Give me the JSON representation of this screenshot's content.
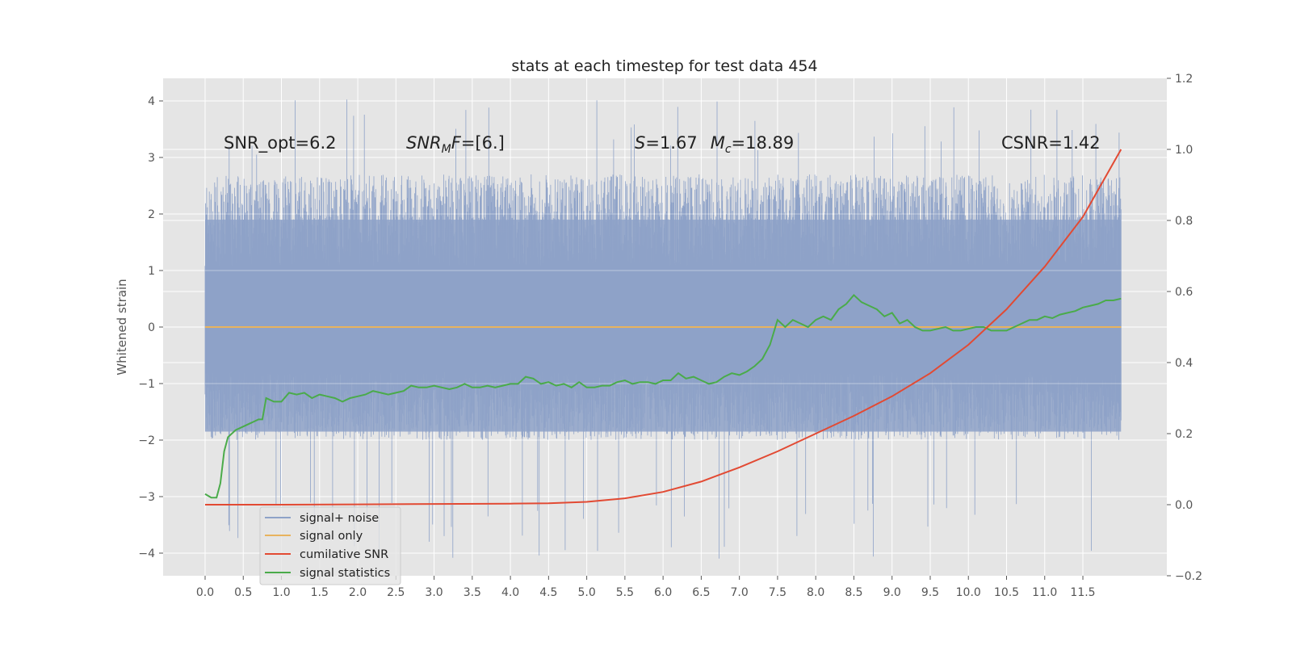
{
  "chart_data": {
    "type": "line",
    "title": "stats at each timestep for test data 454",
    "ylabel": "Whitened strain",
    "y2label": "",
    "xlim": [
      -0.55,
      12.6
    ],
    "ylim": [
      -4.4,
      4.4
    ],
    "y2lim": [
      -0.2,
      1.2
    ],
    "x_ticks": [
      0.0,
      0.5,
      1.0,
      1.5,
      2.0,
      2.5,
      3.0,
      3.5,
      4.0,
      4.5,
      5.0,
      5.5,
      6.0,
      6.5,
      7.0,
      7.5,
      8.0,
      8.5,
      9.0,
      9.5,
      10.0,
      10.5,
      11.0,
      11.5
    ],
    "x_tick_labels": [
      "0.0",
      "0.5",
      "1.0",
      "1.5",
      "2.0",
      "2.5",
      "3.0",
      "3.5",
      "4.0",
      "4.5",
      "5.0",
      "5.5",
      "6.0",
      "6.5",
      "7.0",
      "7.5",
      "8.0",
      "8.5",
      "9.0",
      "9.5",
      "10.0",
      "10.5",
      "11.0",
      "11.5"
    ],
    "y_ticks": [
      -4,
      -3,
      -2,
      -1,
      0,
      1,
      2,
      3,
      4
    ],
    "y_tick_labels": [
      "−4",
      "−3",
      "−2",
      "−1",
      "0",
      "1",
      "2",
      "3",
      "4"
    ],
    "y2_ticks": [
      -0.2,
      0.0,
      0.2,
      0.4,
      0.6,
      0.8,
      1.0,
      1.2
    ],
    "y2_tick_labels": [
      "−0.2",
      "0.0",
      "0.2",
      "0.4",
      "0.6",
      "0.8",
      "1.0",
      "1.2"
    ],
    "grid": true,
    "legend_placement": "lower-left",
    "annotations": [
      {
        "text": "SNR_opt=6.2",
        "x": 0.2,
        "y": 3.2
      },
      {
        "text": "SNR_MF=[6.]",
        "x": 2.6,
        "y": 3.2
      },
      {
        "text": "S=1.67   M_c=18.89",
        "x": 5.6,
        "y": 3.2
      },
      {
        "text": "CSNR=1.42",
        "x": 10.35,
        "y": 3.2
      }
    ],
    "series": [
      {
        "name": "signal+ noise",
        "color": "#8ea2c8",
        "axis": "left",
        "kind": "noise",
        "x_range": [
          0.0,
          12.0
        ],
        "typical_range": [
          -2.0,
          2.7
        ],
        "extreme_range": [
          -4.1,
          4.05
        ]
      },
      {
        "name": "signal only",
        "color": "#e8b35e",
        "axis": "left",
        "x": [
          0.0,
          12.0
        ],
        "values": [
          0.0,
          0.0
        ]
      },
      {
        "name": "cumilative SNR",
        "color": "#e24a33",
        "axis": "right",
        "x": [
          0.0,
          1.0,
          2.0,
          3.0,
          4.0,
          4.5,
          5.0,
          5.5,
          6.0,
          6.5,
          7.0,
          7.5,
          8.0,
          8.5,
          9.0,
          9.5,
          10.0,
          10.5,
          11.0,
          11.5,
          12.0
        ],
        "values": [
          0.0,
          0.0,
          0.001,
          0.002,
          0.003,
          0.004,
          0.008,
          0.018,
          0.036,
          0.065,
          0.105,
          0.15,
          0.2,
          0.25,
          0.305,
          0.37,
          0.45,
          0.55,
          0.67,
          0.81,
          1.0
        ]
      },
      {
        "name": "signal statistics",
        "color": "#4aab4a",
        "axis": "right",
        "x": [
          0.0,
          0.08,
          0.15,
          0.2,
          0.25,
          0.3,
          0.4,
          0.5,
          0.6,
          0.65,
          0.7,
          0.75,
          0.8,
          0.9,
          1.0,
          1.1,
          1.2,
          1.3,
          1.4,
          1.5,
          1.6,
          1.7,
          1.8,
          1.9,
          2.0,
          2.1,
          2.2,
          2.3,
          2.4,
          2.5,
          2.6,
          2.7,
          2.8,
          2.9,
          3.0,
          3.1,
          3.2,
          3.3,
          3.4,
          3.5,
          3.6,
          3.7,
          3.8,
          3.9,
          4.0,
          4.1,
          4.2,
          4.3,
          4.4,
          4.5,
          4.6,
          4.7,
          4.8,
          4.9,
          5.0,
          5.1,
          5.2,
          5.3,
          5.4,
          5.5,
          5.6,
          5.7,
          5.8,
          5.9,
          6.0,
          6.1,
          6.2,
          6.3,
          6.4,
          6.5,
          6.6,
          6.7,
          6.8,
          6.9,
          7.0,
          7.1,
          7.2,
          7.3,
          7.4,
          7.5,
          7.6,
          7.7,
          7.8,
          7.9,
          8.0,
          8.1,
          8.2,
          8.3,
          8.4,
          8.5,
          8.6,
          8.7,
          8.8,
          8.9,
          9.0,
          9.1,
          9.2,
          9.3,
          9.4,
          9.5,
          9.6,
          9.7,
          9.8,
          9.9,
          10.0,
          10.1,
          10.2,
          10.3,
          10.4,
          10.5,
          10.6,
          10.7,
          10.8,
          10.9,
          11.0,
          11.1,
          11.2,
          11.3,
          11.4,
          11.5,
          11.6,
          11.7,
          11.8,
          11.9,
          12.0
        ],
        "values": [
          0.03,
          0.02,
          0.02,
          0.06,
          0.15,
          0.19,
          0.21,
          0.22,
          0.23,
          0.235,
          0.24,
          0.24,
          0.3,
          0.29,
          0.29,
          0.315,
          0.31,
          0.315,
          0.3,
          0.31,
          0.305,
          0.3,
          0.29,
          0.3,
          0.305,
          0.31,
          0.32,
          0.315,
          0.31,
          0.315,
          0.32,
          0.335,
          0.33,
          0.33,
          0.335,
          0.33,
          0.325,
          0.33,
          0.34,
          0.33,
          0.33,
          0.335,
          0.33,
          0.335,
          0.34,
          0.34,
          0.36,
          0.355,
          0.34,
          0.345,
          0.335,
          0.34,
          0.33,
          0.345,
          0.33,
          0.33,
          0.335,
          0.335,
          0.345,
          0.35,
          0.34,
          0.345,
          0.345,
          0.34,
          0.35,
          0.35,
          0.37,
          0.355,
          0.36,
          0.35,
          0.34,
          0.345,
          0.36,
          0.37,
          0.365,
          0.375,
          0.39,
          0.41,
          0.45,
          0.52,
          0.5,
          0.52,
          0.51,
          0.5,
          0.52,
          0.53,
          0.52,
          0.55,
          0.565,
          0.59,
          0.57,
          0.56,
          0.55,
          0.53,
          0.54,
          0.51,
          0.52,
          0.5,
          0.49,
          0.49,
          0.495,
          0.5,
          0.49,
          0.49,
          0.495,
          0.5,
          0.5,
          0.49,
          0.49,
          0.49,
          0.5,
          0.51,
          0.52,
          0.52,
          0.53,
          0.525,
          0.535,
          0.54,
          0.545,
          0.555,
          0.56,
          0.565,
          0.575,
          0.575,
          0.58
        ]
      }
    ]
  }
}
